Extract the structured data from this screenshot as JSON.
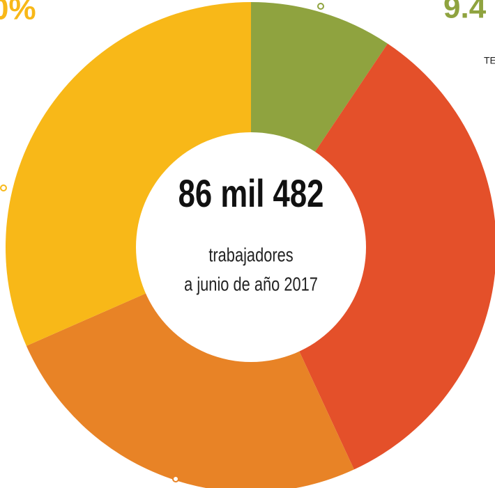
{
  "chart_data": {
    "type": "donut",
    "title": "86 mil 482",
    "subtitle": [
      "trabajadores",
      "a junio de año 2017"
    ],
    "annotations": [
      "0%",
      "9.4",
      "TE"
    ],
    "series": [
      {
        "values": [
          9.4,
          33.7,
          25.3,
          31.6
        ],
        "colors": [
          "#8fa33f",
          "#e4502a",
          "#e88326",
          "#f8b818"
        ]
      }
    ]
  }
}
